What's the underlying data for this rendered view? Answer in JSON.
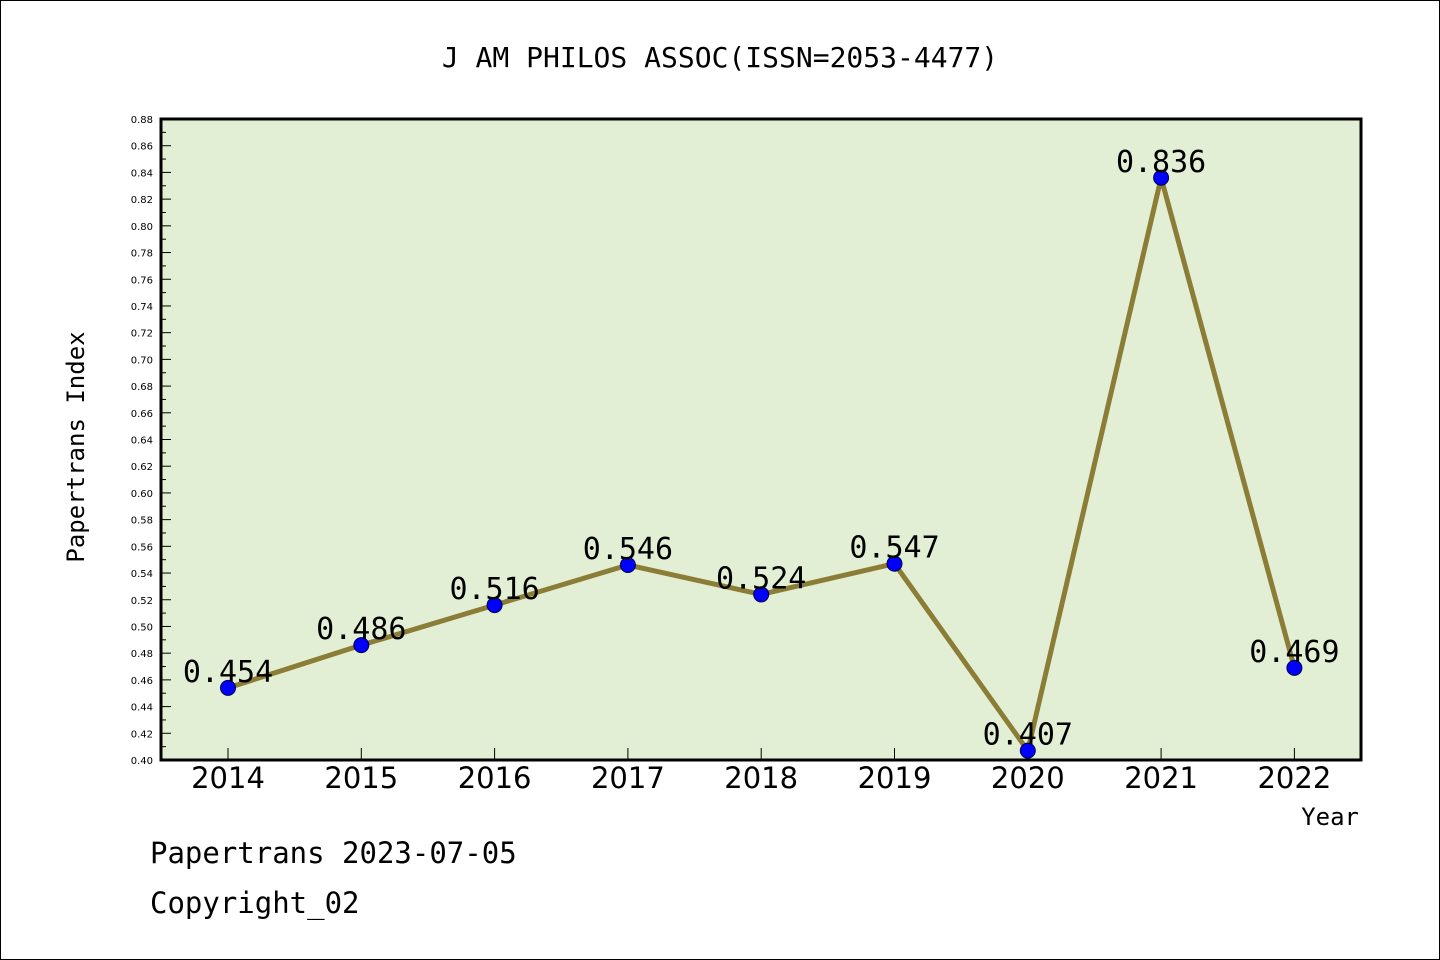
{
  "chart_data": {
    "type": "line",
    "title": "J AM PHILOS ASSOC(ISSN=2053-4477)",
    "xlabel": "Year",
    "ylabel": "Papertrans Index",
    "categories": [
      "2014",
      "2015",
      "2016",
      "2017",
      "2018",
      "2019",
      "2020",
      "2021",
      "2022"
    ],
    "values": [
      0.454,
      0.486,
      0.516,
      0.546,
      0.524,
      0.547,
      0.407,
      0.836,
      0.469
    ],
    "data_labels": [
      "0.454",
      "0.486",
      "0.516",
      "0.546",
      "0.524",
      "0.547",
      "0.407",
      "0.836",
      "0.469"
    ],
    "ylim": [
      0.4,
      0.88
    ],
    "ytick_step": 0.02,
    "grid": false,
    "colors": {
      "plot_background": "#e2efd4",
      "line": "#8b7d35",
      "marker": "#0000ff"
    }
  },
  "footer": {
    "line1": "Papertrans 2023-07-05",
    "line2": "Copyright_02"
  }
}
